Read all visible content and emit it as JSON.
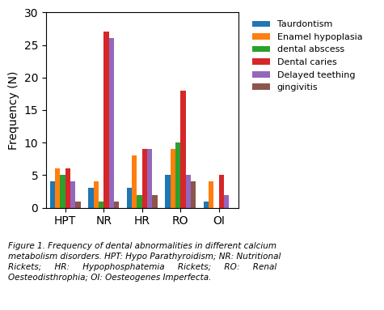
{
  "chart_data": {
    "type": "bar",
    "categories": [
      "HPT",
      "NR",
      "HR",
      "RO",
      "OI"
    ],
    "series": [
      {
        "name": "Taurdontism",
        "values": [
          4,
          3,
          3,
          5,
          1
        ]
      },
      {
        "name": "Enamel hypoplasia",
        "values": [
          6,
          4,
          8,
          9,
          4
        ]
      },
      {
        "name": "dental abscess",
        "values": [
          5,
          1,
          2,
          10,
          0
        ]
      },
      {
        "name": "Dental caries",
        "values": [
          6,
          27,
          9,
          18,
          5
        ]
      },
      {
        "name": "Delayed teething",
        "values": [
          4,
          26,
          9,
          5,
          2
        ]
      },
      {
        "name": "gingivitis",
        "values": [
          1,
          1,
          2,
          4,
          0
        ]
      }
    ],
    "y_label": "Frequency (N)",
    "ylim": [
      0,
      30
    ],
    "yticks": [
      0,
      5,
      10,
      15,
      20,
      25,
      30
    ],
    "legend": "upper left",
    "caption": "Figure 1. Frequency of dental abnormalities in different calcium\nmetabolism disorders. HPT: Hypo Parathyroidism; NR: Nutritional\nRickets;     HR:     Hypophosphatemia     Rickets;     RO:     Renal\nOesteodisthrophia; OI: Oesteogenes Imperfecta."
  }
}
